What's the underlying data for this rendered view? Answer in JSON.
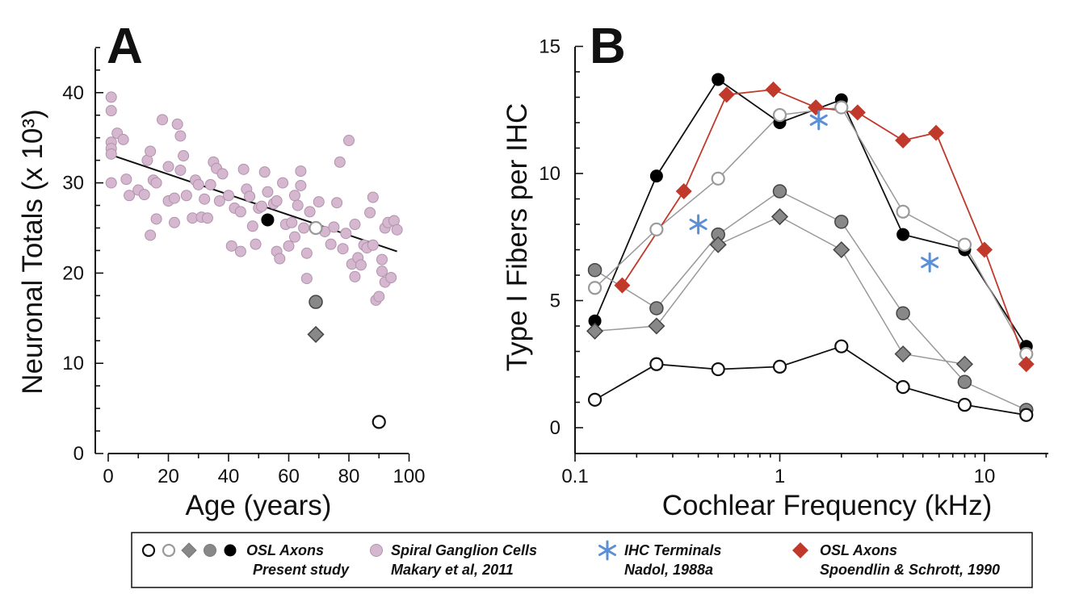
{
  "chart_data": [
    {
      "panel": "A",
      "type": "scatter",
      "xlabel": "Age (years)",
      "ylabel": "Neuronal Totals (x 10³)",
      "xlim": [
        0,
        100
      ],
      "ylim": [
        0,
        45
      ],
      "xticks": [
        "0",
        "20",
        "40",
        "60",
        "80",
        "100"
      ],
      "yticks": [
        "0",
        "10",
        "20",
        "30",
        "40"
      ],
      "series": [
        {
          "name": "Spiral Ganglion Cells",
          "marker": "circle-pink",
          "points": [
            [
              1,
              39.5
            ],
            [
              1,
              38
            ],
            [
              1,
              34.5
            ],
            [
              1,
              33.8
            ],
            [
              1,
              33.2
            ],
            [
              1,
              30
            ],
            [
              3,
              35.5
            ],
            [
              5,
              34.8
            ],
            [
              6,
              30.4
            ],
            [
              7,
              28.6
            ],
            [
              10,
              29.2
            ],
            [
              12,
              28.7
            ],
            [
              13,
              32.5
            ],
            [
              14,
              33.5
            ],
            [
              14,
              24.2
            ],
            [
              15,
              30.3
            ],
            [
              16,
              30
            ],
            [
              16,
              26
            ],
            [
              18,
              37
            ],
            [
              20,
              28
            ],
            [
              20,
              31.8
            ],
            [
              22,
              25.6
            ],
            [
              22,
              28.3
            ],
            [
              23,
              36.5
            ],
            [
              24,
              35.2
            ],
            [
              24,
              31.4
            ],
            [
              25,
              33
            ],
            [
              26,
              28.6
            ],
            [
              28,
              26.1
            ],
            [
              29,
              30.3
            ],
            [
              30,
              29.8
            ],
            [
              31,
              26.2
            ],
            [
              32,
              28.2
            ],
            [
              33,
              26.1
            ],
            [
              34,
              29.8
            ],
            [
              35,
              32.3
            ],
            [
              36,
              31.6
            ],
            [
              37,
              28
            ],
            [
              38,
              31
            ],
            [
              40,
              28.6
            ],
            [
              41,
              23
            ],
            [
              42,
              27.2
            ],
            [
              44,
              26.8
            ],
            [
              44,
              22.4
            ],
            [
              45,
              31.5
            ],
            [
              46,
              29.3
            ],
            [
              47,
              28.5
            ],
            [
              48,
              25.2
            ],
            [
              49,
              23.2
            ],
            [
              50,
              27.2
            ],
            [
              51,
              27.4
            ],
            [
              52,
              31.2
            ],
            [
              53,
              29
            ],
            [
              55,
              27.7
            ],
            [
              56,
              28
            ],
            [
              56,
              22.4
            ],
            [
              57,
              21.6
            ],
            [
              58,
              30
            ],
            [
              59,
              25.4
            ],
            [
              60,
              23
            ],
            [
              61,
              25.6
            ],
            [
              62,
              24
            ],
            [
              62,
              28.6
            ],
            [
              63,
              27.5
            ],
            [
              64,
              29.7
            ],
            [
              64,
              31.3
            ],
            [
              65,
              25
            ],
            [
              66,
              22.2
            ],
            [
              67,
              26.8
            ],
            [
              70,
              27.9
            ],
            [
              72,
              24.6
            ],
            [
              74,
              23.2
            ],
            [
              75,
              25.1
            ],
            [
              76,
              27.8
            ],
            [
              77,
              32.3
            ],
            [
              78,
              22.7
            ],
            [
              79,
              24.4
            ],
            [
              80,
              34.7
            ],
            [
              81,
              21
            ],
            [
              82,
              25.4
            ],
            [
              82,
              19.6
            ],
            [
              83,
              21.7
            ],
            [
              84,
              20.9
            ],
            [
              85,
              23.1
            ],
            [
              86,
              22.8
            ],
            [
              87,
              26.7
            ],
            [
              88,
              23.1
            ],
            [
              88,
              28.4
            ],
            [
              89,
              17
            ],
            [
              90,
              17.4
            ],
            [
              91,
              20.2
            ],
            [
              91,
              21.5
            ],
            [
              92,
              19
            ],
            [
              92,
              25
            ],
            [
              93,
              25.6
            ],
            [
              94,
              19.5
            ],
            [
              95,
              25.8
            ],
            [
              96,
              24.8
            ],
            [
              66,
              19.4
            ]
          ]
        },
        {
          "name": "OSL Axons (black)",
          "marker": "circle-black",
          "points": [
            [
              53,
              25.9
            ]
          ]
        },
        {
          "name": "OSL Axons (open gray)",
          "marker": "circle-open-gray",
          "points": [
            [
              69,
              25
            ]
          ]
        },
        {
          "name": "OSL Axons (gray circle)",
          "marker": "circle-gray",
          "points": [
            [
              69,
              16.8
            ]
          ]
        },
        {
          "name": "OSL Axons (gray diamond)",
          "marker": "diamond-gray",
          "points": [
            [
              69,
              13.2
            ]
          ]
        },
        {
          "name": "OSL Axons (open black)",
          "marker": "circle-open-black",
          "points": [
            [
              90,
              3.5
            ]
          ]
        }
      ],
      "trendline": {
        "x": [
          0,
          96
        ],
        "y": [
          33.2,
          22.4
        ]
      }
    },
    {
      "panel": "B",
      "type": "line",
      "xlabel": "Cochlear Frequency (kHz)",
      "ylabel": "Type I Fibers per IHC",
      "xscale": "log",
      "xlim": [
        0.1,
        20
      ],
      "ylim": [
        -1,
        15
      ],
      "xticks": [
        "0.1",
        "1",
        "10"
      ],
      "yticks": [
        "0",
        "5",
        "10",
        "15"
      ],
      "series": [
        {
          "marker": "circle-black",
          "line": "#111111",
          "x": [
            0.125,
            0.25,
            0.5,
            1,
            2,
            4,
            8,
            16
          ],
          "y": [
            4.2,
            9.9,
            13.7,
            12.0,
            12.9,
            7.6,
            7.0,
            3.2
          ]
        },
        {
          "marker": "circle-open-gray",
          "line": "#999999",
          "x": [
            0.125,
            0.25,
            0.5,
            1,
            2,
            4,
            8,
            16
          ],
          "y": [
            5.5,
            7.8,
            9.8,
            12.3,
            12.6,
            8.5,
            7.2,
            2.9
          ]
        },
        {
          "marker": "circle-gray",
          "line": "#999999",
          "x": [
            0.125,
            0.25,
            0.5,
            1,
            2,
            4,
            8,
            16
          ],
          "y": [
            6.2,
            4.7,
            7.6,
            9.3,
            8.1,
            4.5,
            1.8,
            0.7
          ]
        },
        {
          "marker": "diamond-gray",
          "line": "#999999",
          "x": [
            0.125,
            0.25,
            0.5,
            1,
            2,
            4,
            8
          ],
          "y": [
            3.8,
            4.0,
            7.2,
            8.3,
            7.0,
            2.9,
            2.5
          ]
        },
        {
          "marker": "circle-open-black",
          "line": "#111111",
          "x": [
            0.125,
            0.25,
            0.5,
            1,
            2,
            4,
            8,
            16
          ],
          "y": [
            1.1,
            2.5,
            2.3,
            2.4,
            3.2,
            1.6,
            0.9,
            0.5
          ]
        },
        {
          "marker": "diamond-red",
          "line": "#c0392b",
          "x": [
            0.17,
            0.34,
            0.55,
            0.93,
            1.5,
            2.4,
            4.0,
            5.8,
            10,
            16
          ],
          "y": [
            5.6,
            9.3,
            13.1,
            13.3,
            12.6,
            12.4,
            11.3,
            11.6,
            7.0,
            2.5
          ]
        },
        {
          "marker": "star-blue",
          "line": null,
          "x": [
            0.4,
            1.55,
            5.4
          ],
          "y": [
            8.0,
            12.1,
            6.5
          ]
        }
      ]
    }
  ],
  "panels": {
    "a": "A",
    "b": "B"
  },
  "legend": {
    "osl_present": {
      "line1": "OSL Axons",
      "line2": "Present study"
    },
    "spiral": {
      "line1": "Spiral Ganglion Cells",
      "line2": "Makary et al, 2011"
    },
    "ihc": {
      "line1": "IHC Terminals",
      "line2": "Nadol, 1988a"
    },
    "osl_spoendlin": {
      "line1": "OSL Axons",
      "line2": "Spoendlin & Schrott, 1990"
    }
  },
  "colors": {
    "pink_fill": "#d6b7d0",
    "pink_stroke": "#b292ac",
    "gray_fill": "#888888",
    "open_gray_stroke": "#9a9a9a",
    "red": "#c0392b",
    "red_line": "#b03a2e",
    "blue_star": "#5b8fd6"
  }
}
